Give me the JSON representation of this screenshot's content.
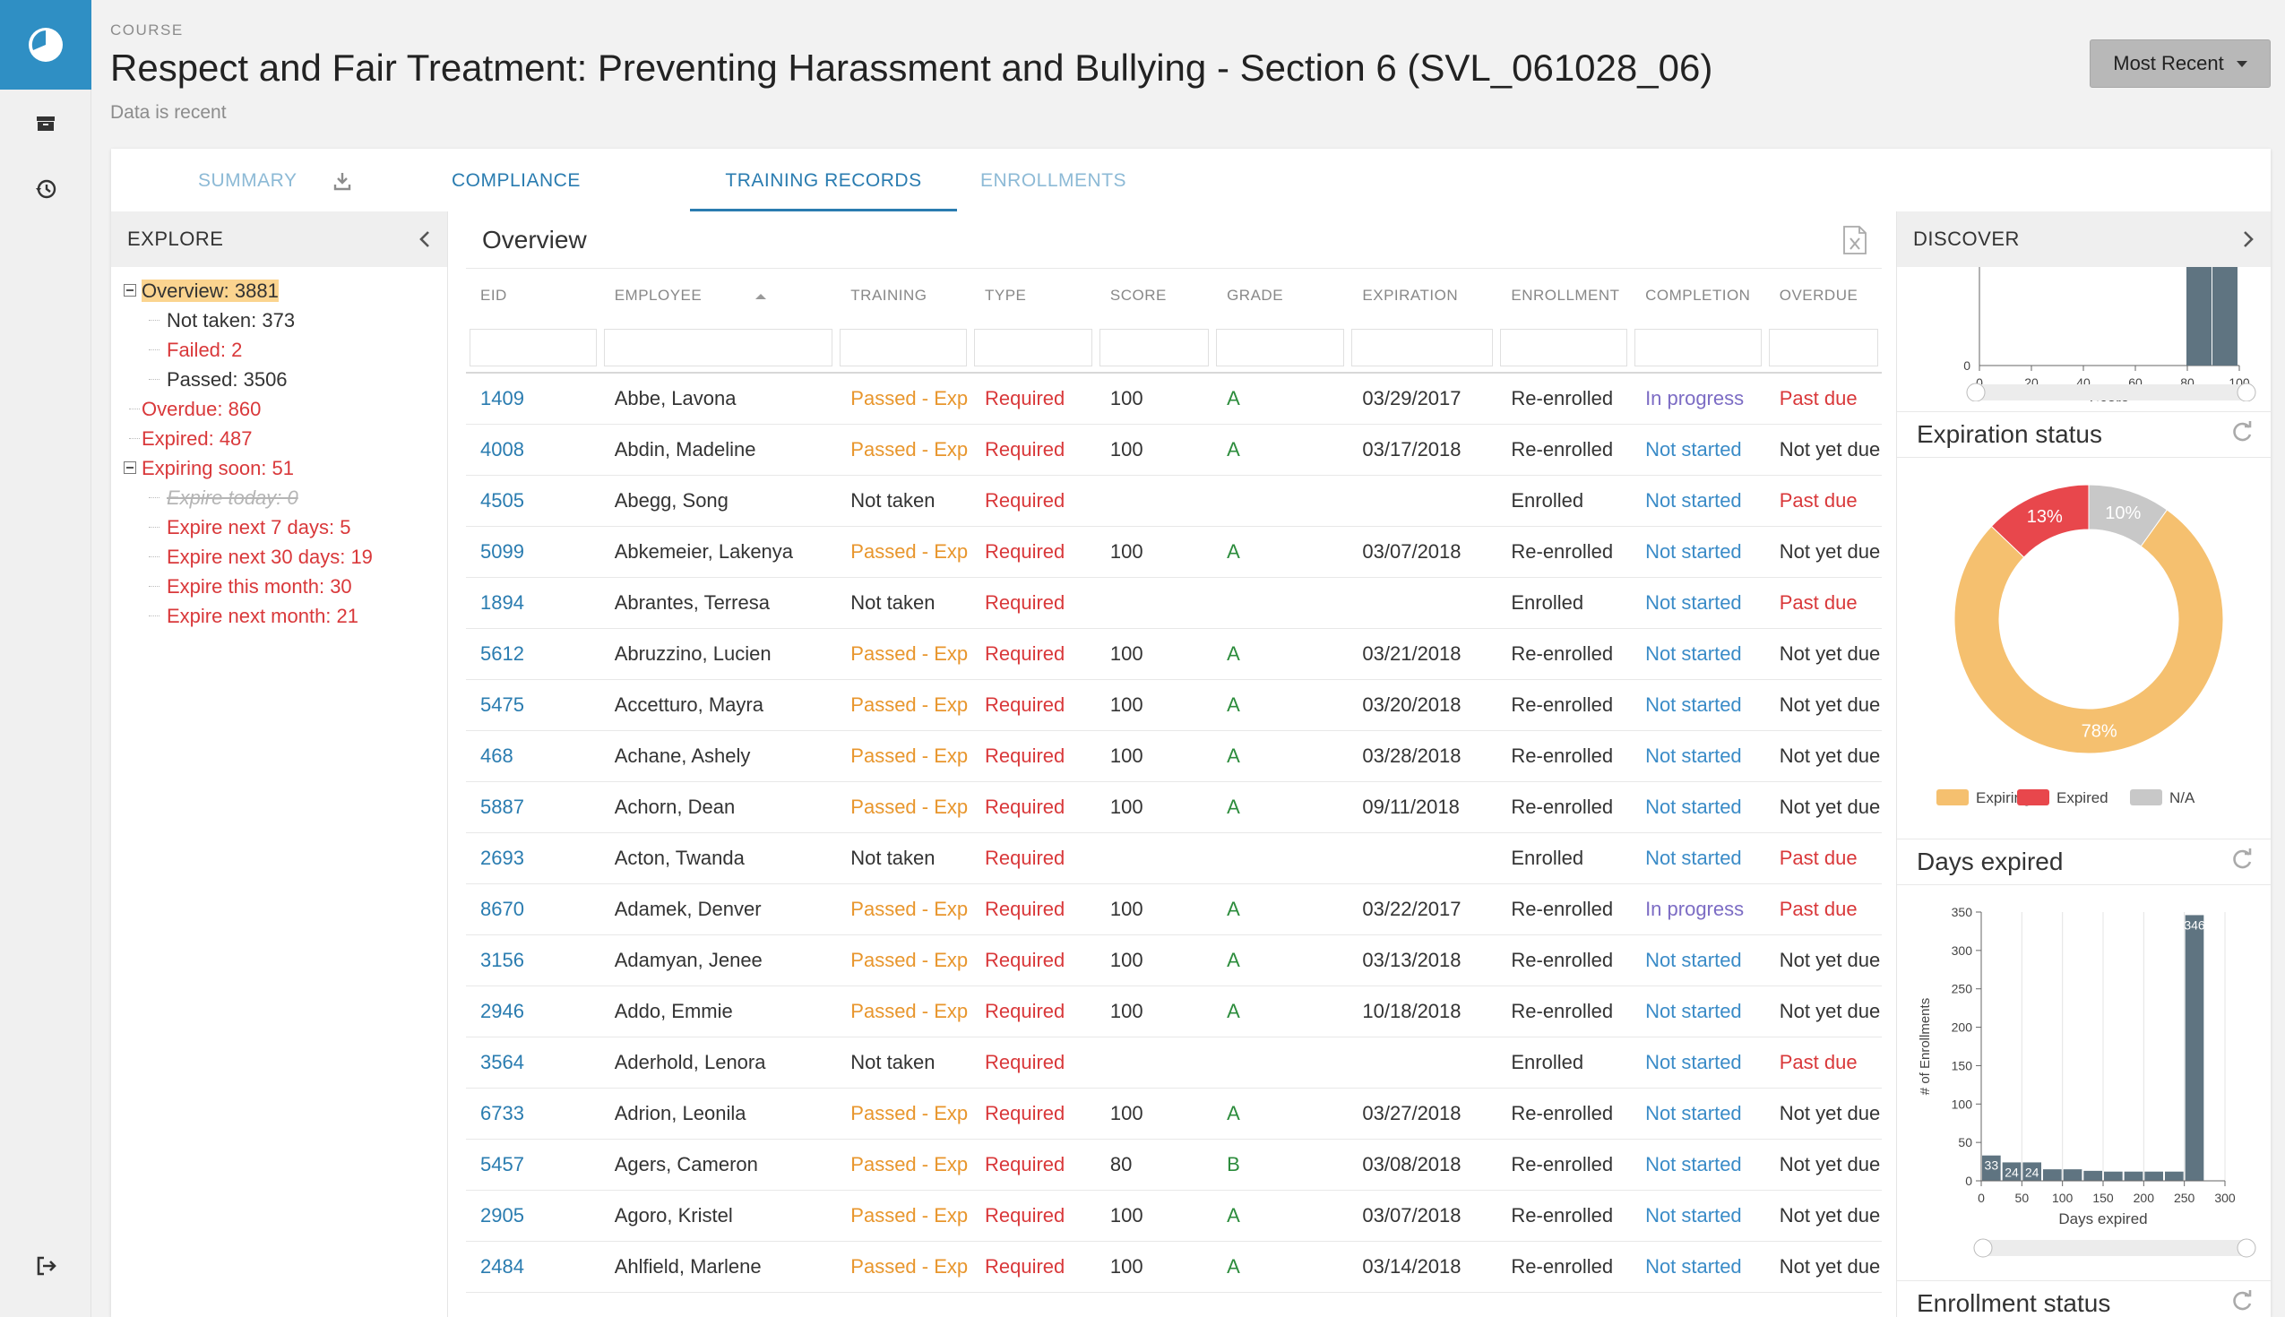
{
  "header": {
    "eyebrow": "COURSE",
    "title": "Respect and Fair Treatment: Preventing Harassment and Bullying - Section 6 (SVL_061028_06)",
    "status": "Data is recent",
    "sort_button": "Most Recent"
  },
  "tabs": [
    {
      "label": "SUMMARY"
    },
    {
      "label": "COMPLIANCE"
    },
    {
      "label": "TRAINING RECORDS"
    },
    {
      "label": "ENROLLMENTS"
    }
  ],
  "explore": {
    "title": "EXPLORE",
    "items": [
      {
        "label": "Overview: 3881"
      },
      {
        "label": "Not taken: 373"
      },
      {
        "label": "Failed: 2"
      },
      {
        "label": "Passed: 3506"
      },
      {
        "label": "Overdue: 860"
      },
      {
        "label": "Expired: 487"
      },
      {
        "label": "Expiring soon: 51"
      },
      {
        "label": "Expire today: 0"
      },
      {
        "label": "Expire next 7 days: 5"
      },
      {
        "label": "Expire next 30 days: 19"
      },
      {
        "label": "Expire this month: 30"
      },
      {
        "label": "Expire next month: 21"
      }
    ]
  },
  "overview": {
    "title": "Overview",
    "columns": [
      "EID",
      "EMPLOYEE",
      "TRAINING",
      "TYPE",
      "SCORE",
      "GRADE",
      "EXPIRATION",
      "ENROLLMENT",
      "COMPLETION",
      "OVERDUE"
    ],
    "rows": [
      [
        "1409",
        "Abbe, Lavona",
        "Passed - Exp",
        "Required",
        "100",
        "A",
        "03/29/2017",
        "Re-enrolled",
        "In progress",
        "Past due"
      ],
      [
        "4008",
        "Abdin, Madeline",
        "Passed - Exp",
        "Required",
        "100",
        "A",
        "03/17/2018",
        "Re-enrolled",
        "Not started",
        "Not yet due"
      ],
      [
        "4505",
        "Abegg, Song",
        "Not taken",
        "Required",
        "",
        "",
        "",
        "Enrolled",
        "Not started",
        "Past due"
      ],
      [
        "5099",
        "Abkemeier, Lakenya",
        "Passed - Exp",
        "Required",
        "100",
        "A",
        "03/07/2018",
        "Re-enrolled",
        "Not started",
        "Not yet due"
      ],
      [
        "1894",
        "Abrantes, Terresa",
        "Not taken",
        "Required",
        "",
        "",
        "",
        "Enrolled",
        "Not started",
        "Past due"
      ],
      [
        "5612",
        "Abruzzino, Lucien",
        "Passed - Exp",
        "Required",
        "100",
        "A",
        "03/21/2018",
        "Re-enrolled",
        "Not started",
        "Not yet due"
      ],
      [
        "5475",
        "Accetturo, Mayra",
        "Passed - Exp",
        "Required",
        "100",
        "A",
        "03/20/2018",
        "Re-enrolled",
        "Not started",
        "Not yet due"
      ],
      [
        "468",
        "Achane, Ashely",
        "Passed - Exp",
        "Required",
        "100",
        "A",
        "03/28/2018",
        "Re-enrolled",
        "Not started",
        "Not yet due"
      ],
      [
        "5887",
        "Achorn, Dean",
        "Passed - Exp",
        "Required",
        "100",
        "A",
        "09/11/2018",
        "Re-enrolled",
        "Not started",
        "Not yet due"
      ],
      [
        "2693",
        "Acton, Twanda",
        "Not taken",
        "Required",
        "",
        "",
        "",
        "Enrolled",
        "Not started",
        "Past due"
      ],
      [
        "8670",
        "Adamek, Denver",
        "Passed - Exp",
        "Required",
        "100",
        "A",
        "03/22/2017",
        "Re-enrolled",
        "In progress",
        "Past due"
      ],
      [
        "3156",
        "Adamyan, Jenee",
        "Passed - Exp",
        "Required",
        "100",
        "A",
        "03/13/2018",
        "Re-enrolled",
        "Not started",
        "Not yet due"
      ],
      [
        "2946",
        "Addo, Emmie",
        "Passed - Exp",
        "Required",
        "100",
        "A",
        "10/18/2018",
        "Re-enrolled",
        "Not started",
        "Not yet due"
      ],
      [
        "3564",
        "Aderhold, Lenora",
        "Not taken",
        "Required",
        "",
        "",
        "",
        "Enrolled",
        "Not started",
        "Past due"
      ],
      [
        "6733",
        "Adrion, Leonila",
        "Passed - Exp",
        "Required",
        "100",
        "A",
        "03/27/2018",
        "Re-enrolled",
        "Not started",
        "Not yet due"
      ],
      [
        "5457",
        "Agers, Cameron",
        "Passed - Exp",
        "Required",
        "80",
        "B",
        "03/08/2018",
        "Re-enrolled",
        "Not started",
        "Not yet due"
      ],
      [
        "2905",
        "Agoro, Kristel",
        "Passed - Exp",
        "Required",
        "100",
        "A",
        "03/07/2018",
        "Re-enrolled",
        "Not started",
        "Not yet due"
      ],
      [
        "2484",
        "Ahlfield, Marlene",
        "Passed - Exp",
        "Required",
        "100",
        "A",
        "03/14/2018",
        "Re-enrolled",
        "Not started",
        "Not yet due"
      ]
    ]
  },
  "discover": {
    "title": "DISCOVER",
    "widgets": [
      {
        "title": "Expiration status"
      },
      {
        "title": "Days expired"
      },
      {
        "title": "Enrollment status"
      }
    ]
  },
  "colors": {
    "accent": "#2a7cb0",
    "na": "#c8c8c8",
    "expiring": "#f5c06f",
    "expired": "#e8474c",
    "bar": "#5f7481"
  },
  "chart_data": [
    {
      "type": "bar",
      "xlabel": "Score",
      "x_ticks": [
        "0",
        "20",
        "40",
        "60",
        "80",
        "100"
      ],
      "xlim": [
        0,
        100
      ],
      "y_ticks": [
        "0"
      ],
      "bars": [
        {
          "x": 90,
          "value": 1
        },
        {
          "x": 100,
          "value": 1
        }
      ]
    },
    {
      "type": "pie",
      "title": "Expiration status",
      "slices": [
        {
          "label": "N/A",
          "value": 10,
          "text": "10%"
        },
        {
          "label": "Expiring",
          "value": 78,
          "text": "78%"
        },
        {
          "label": "Expired",
          "value": 13,
          "text": "13%"
        }
      ]
    },
    {
      "type": "bar",
      "title": "Days expired",
      "xlabel": "Days expired",
      "ylabel": "# of Enrollments",
      "x_ticks": [
        "0",
        "50",
        "100",
        "150",
        "200",
        "250",
        "300"
      ],
      "y_ticks": [
        "0",
        "50",
        "100",
        "150",
        "200",
        "250",
        "300",
        "350"
      ],
      "xlim": [
        0,
        300
      ],
      "ylim": [
        0,
        350
      ],
      "bars": [
        {
          "x0": 0,
          "x1": 25,
          "value": 33,
          "label": "33"
        },
        {
          "x0": 25,
          "x1": 50,
          "value": 24,
          "label": "24"
        },
        {
          "x0": 50,
          "x1": 75,
          "value": 24,
          "label": "24"
        },
        {
          "x0": 75,
          "x1": 100,
          "value": 15,
          "label": ""
        },
        {
          "x0": 100,
          "x1": 125,
          "value": 15,
          "label": ""
        },
        {
          "x0": 125,
          "x1": 150,
          "value": 13,
          "label": ""
        },
        {
          "x0": 150,
          "x1": 175,
          "value": 12,
          "label": ""
        },
        {
          "x0": 175,
          "x1": 200,
          "value": 12,
          "label": ""
        },
        {
          "x0": 200,
          "x1": 225,
          "value": 12,
          "label": ""
        },
        {
          "x0": 225,
          "x1": 250,
          "value": 12,
          "label": ""
        },
        {
          "x0": 250,
          "x1": 275,
          "value": 346,
          "label": "346"
        }
      ]
    }
  ]
}
